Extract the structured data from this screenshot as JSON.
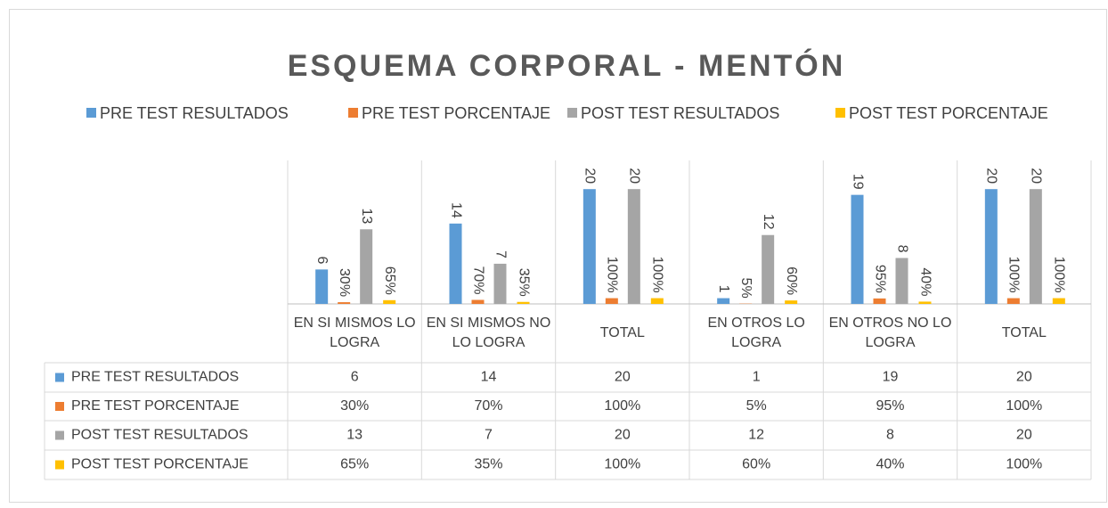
{
  "chart_data": {
    "type": "bar",
    "title": "ESQUEMA CORPORAL - MENTÓN",
    "categories": [
      "EN SI MISMOS LO LOGRA",
      "EN SI MISMOS NO LO LOGRA",
      "TOTAL",
      "EN OTROS LO LOGRA",
      "EN OTROS NO LO LOGRA",
      "TOTAL"
    ],
    "series": [
      {
        "name": "PRE TEST  RESULTADOS",
        "color": "#5b9bd5",
        "values": [
          6,
          14,
          20,
          1,
          19,
          20
        ]
      },
      {
        "name": "PRE TEST  PORCENTAJE",
        "color": "#ed7d31",
        "values": [
          0.3,
          0.7,
          1,
          0.05,
          0.95,
          1
        ],
        "value_labels": [
          "30%",
          "70%",
          "100%",
          "5%",
          "95%",
          "100%"
        ]
      },
      {
        "name": "POST TEST RESULTADOS",
        "color": "#a5a5a5",
        "values": [
          13,
          7,
          20,
          12,
          8,
          20
        ]
      },
      {
        "name": "POST TEST PORCENTAJE",
        "color": "#ffc000",
        "values": [
          0.65,
          0.35,
          1,
          0.6,
          0.4,
          1
        ],
        "value_labels": [
          "65%",
          "35%",
          "100%",
          "60%",
          "40%",
          "100%"
        ]
      }
    ],
    "ylim": [
      0,
      25
    ],
    "legend": "top",
    "data_table": true
  }
}
